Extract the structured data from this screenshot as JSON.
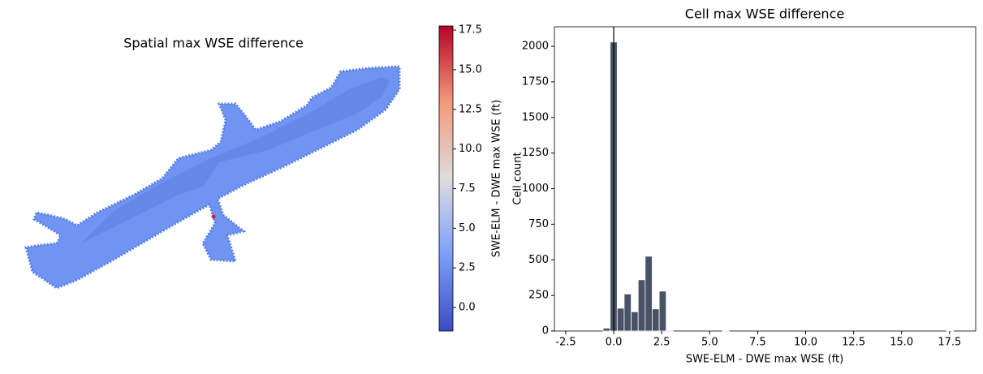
{
  "chart_data": [
    {
      "type": "map",
      "title": "Spatial max WSE difference",
      "colorbar": {
        "label": "SWE-ELM - DWE max WSE (ft)",
        "lim": [
          -1.48,
          17.76
        ],
        "ticks": [
          {
            "value": 0,
            "label": "0.0"
          },
          2.5,
          {
            "value": 5,
            "label": "5.0"
          },
          7.5,
          {
            "value": 10,
            "label": "10.0"
          },
          12.5,
          {
            "value": 15,
            "label": "15.0"
          },
          17.5
        ]
      }
    },
    {
      "type": "histogram",
      "title": "Cell max WSE difference",
      "xlabel": "SWE-ELM - DWE max WSE (ft)",
      "ylabel": "Cell count",
      "color": "#475266",
      "bins": [
        -0.55,
        -0.185,
        0.18,
        0.545,
        0.91,
        1.275,
        1.64,
        2.005,
        2.37,
        2.735,
        3.1,
        3.465,
        3.83,
        4.195,
        4.56,
        4.925,
        5.29,
        5.655,
        6.02,
        6.385,
        6.75,
        7.115,
        7.48,
        7.845,
        8.21,
        8.575,
        8.94,
        9.305,
        9.67,
        10.035,
        10.4,
        10.765,
        11.13,
        11.495,
        11.86,
        12.225,
        12.59,
        12.955,
        13.32,
        13.685,
        14.05,
        14.415,
        14.78,
        15.145,
        15.51,
        15.875,
        16.24,
        16.605,
        16.97,
        17.335,
        17.7
      ],
      "values": [
        20,
        2030,
        160,
        260,
        135,
        360,
        525,
        155,
        280,
        5,
        0,
        0,
        0,
        0,
        0,
        0,
        0,
        3,
        0,
        0,
        0,
        0,
        0,
        0,
        0,
        0,
        0,
        0,
        0,
        0,
        0,
        0,
        0,
        0,
        0,
        0,
        0,
        0,
        0,
        0,
        0,
        0,
        0,
        0,
        0,
        0,
        0,
        0,
        0,
        1
      ],
      "vline": 0,
      "xlim": [
        -3.09,
        18.86
      ],
      "ylim": [
        0,
        2137
      ],
      "xticks": [
        -2.5,
        {
          "value": 0,
          "label": "0.0"
        },
        2.5,
        {
          "value": 5,
          "label": "5.0"
        },
        7.5,
        {
          "value": 10,
          "label": "10.0"
        },
        12.5,
        {
          "value": 15,
          "label": "15.0"
        },
        17.5
      ],
      "yticks": [
        0,
        250,
        500,
        750,
        1000,
        1250,
        1500,
        1750,
        2000
      ]
    }
  ]
}
